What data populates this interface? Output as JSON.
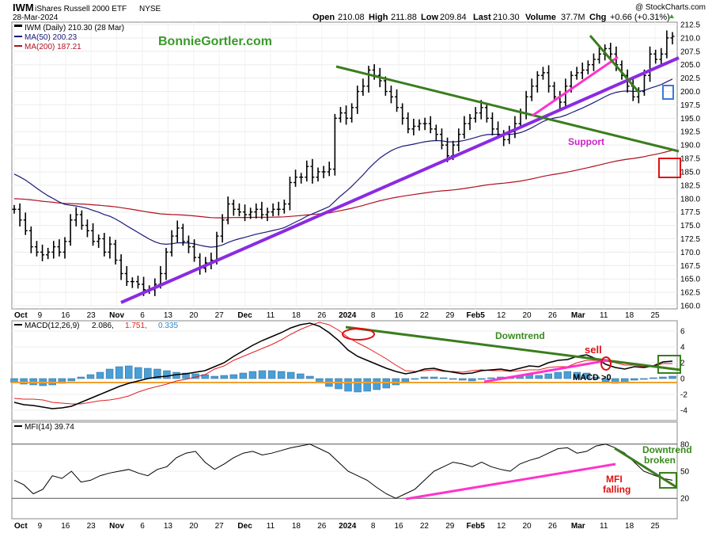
{
  "header": {
    "symbol": "IWM",
    "name": "iShares Russell 2000 ETF",
    "exchange": "NYSE",
    "date": "28-Mar-2024",
    "open_label": "Open",
    "open": "210.08",
    "high_label": "High",
    "high": "211.88",
    "low_label": "Low",
    "low": "209.84",
    "last_label": "Last",
    "last": "210.30",
    "volume_label": "Volume",
    "volume": "37.7M",
    "chg_label": "Chg",
    "chg": "+0.66 (+0.31%)",
    "source": "@ StockCharts.com"
  },
  "watermark": "BonnieGortler.com",
  "price_legend": {
    "main": "IWM (Daily) 210.30 (28 Mar)",
    "ma50": "MA(50) 200.23",
    "ma200": "MA(200) 187.21"
  },
  "macd_legend": {
    "label": "MACD(12,26,9)",
    "v1": "2.086,",
    "v2": "1.751,",
    "v3": "0.335"
  },
  "mfi_legend": {
    "label": "MFI(14) 39.74"
  },
  "annotations": {
    "support": "Support",
    "downtrend": "Downtrend",
    "sell": "sell",
    "macd_gt_0": "MACD >0",
    "downtrend_broken_1": "Downtrend",
    "downtrend_broken_2": "broken",
    "mfi_falling_1": "MFI",
    "mfi_falling_2": "falling"
  },
  "colors": {
    "price_bar": "#000000",
    "ma50": "#1a1a7a",
    "ma200": "#b01020",
    "trend_purple": "#8a2be2",
    "trend_green": "#3a7d1e",
    "magenta": "#ff33cc",
    "macd_line": "#000000",
    "signal_line": "#e02020",
    "histogram": "#4a9fd6",
    "zero_line": "#f0a030",
    "annot_red": "#e01010",
    "annot_blue": "#3b7ad8"
  },
  "chart_data": [
    {
      "type": "ohlc",
      "panel": "price",
      "title": "IWM iShares Russell 2000 ETF NYSE",
      "ylim": [
        160,
        212.5
      ],
      "y_ticks": [
        "212.5",
        "210.0",
        "207.5",
        "205.0",
        "202.5",
        "200.0",
        "197.5",
        "195.0",
        "192.5",
        "190.0",
        "187.5",
        "185.0",
        "182.5",
        "180.0",
        "177.5",
        "175.0",
        "172.5",
        "170.0",
        "167.5",
        "165.0",
        "162.5",
        "160.0"
      ],
      "x_labels": [
        "Oct",
        "9",
        "16",
        "23",
        "Nov",
        "6",
        "13",
        "20",
        "27",
        "Dec",
        "11",
        "18",
        "26",
        "2024",
        "8",
        "16",
        "22",
        "29",
        "Feb5",
        "12",
        "20",
        "26",
        "Mar",
        "11",
        "18",
        "25"
      ],
      "series": [
        {
          "name": "IWM (Daily)",
          "last": 210.3
        },
        {
          "name": "MA(50)",
          "last": 200.23
        },
        {
          "name": "MA(200)",
          "last": 187.21
        }
      ],
      "close_path": [
        178,
        176,
        174,
        171,
        170,
        169.5,
        170,
        171,
        170,
        172,
        176,
        177,
        175,
        174,
        172,
        172.5,
        170,
        171.5,
        168.5,
        166,
        164.5,
        164.5,
        164,
        163,
        163,
        164,
        166,
        170,
        173,
        174.5,
        172,
        171,
        169,
        167,
        168,
        168.5,
        173,
        176,
        179,
        178,
        177.5,
        177,
        177.5,
        178,
        177,
        177.5,
        178,
        178,
        179,
        183,
        184,
        184,
        186,
        184,
        185,
        185,
        185.5,
        195,
        196,
        195,
        197,
        200,
        201,
        204,
        203,
        202,
        200,
        199,
        197,
        195,
        193,
        193.5,
        194,
        194,
        193,
        192,
        190,
        188,
        190,
        192,
        194,
        195,
        196,
        197,
        195,
        193,
        192,
        191,
        192.5,
        194,
        196,
        199,
        201,
        203,
        203.5,
        201,
        199,
        198,
        201,
        203,
        203.5,
        204,
        205,
        206,
        207,
        208,
        207,
        205,
        203,
        201,
        199,
        200,
        203,
        207,
        206,
        207,
        210,
        210.3
      ]
    },
    {
      "type": "line",
      "panel": "macd",
      "title": "MACD(12,26,9)",
      "ylim": [
        -5,
        7
      ],
      "y_ticks": [
        "6",
        "4",
        "2",
        "0",
        "-2",
        "-4"
      ],
      "series": [
        {
          "name": "MACD(12,26,9)",
          "last": 2.086
        },
        {
          "name": "Signal",
          "last": 1.751
        },
        {
          "name": "Histogram",
          "last": 0.335
        }
      ],
      "macd": [
        -3,
        -3.3,
        -3.4,
        -3.6,
        -3.8,
        -3.7,
        -3.5,
        -3,
        -2.5,
        -2,
        -1.5,
        -1,
        -0.6,
        -0.3,
        0,
        0.2,
        0.3,
        0.5,
        0.6,
        0.8,
        1,
        1.5,
        2,
        2.8,
        3.5,
        4.2,
        4.8,
        5.3,
        5.8,
        6.4,
        6.8,
        7,
        6.6,
        5.8,
        4.8,
        3.6,
        2.8,
        2.3,
        1.8,
        1.3,
        0.9,
        0.6,
        0.8,
        1.2,
        1.3,
        1.0,
        0.8,
        0.6,
        0.7,
        1.0,
        1.1,
        1.2,
        1.0,
        1.3,
        1.6,
        1.5,
        2.0,
        2.3,
        2.4,
        2.8,
        3.0,
        2.5,
        1.8,
        1.4,
        1.2,
        1.5,
        1.4,
        1.6,
        2.1,
        2.2
      ],
      "histogram": [
        -0.5,
        -0.7,
        -0.8,
        -0.9,
        -0.8,
        -0.6,
        -0.3,
        0.2,
        0.5,
        0.8,
        1.2,
        1.5,
        1.6,
        1.4,
        1.3,
        1.2,
        1.0,
        0.8,
        0.7,
        0.6,
        0.5,
        0.3,
        0.4,
        0.5,
        0.7,
        0.9,
        1.0,
        1.0,
        0.9,
        0.8,
        0.6,
        0.3,
        -0.5,
        -1.0,
        -1.3,
        -1.6,
        -1.7,
        -1.6,
        -1.4,
        -1.2,
        -0.8,
        -0.4,
        -0.1,
        0.2,
        0.2,
        0.1,
        -0.1,
        -0.2,
        -0.3,
        -0.1,
        0.1,
        0.2,
        0.1,
        0.3,
        0.5,
        0.4,
        0.6,
        0.8,
        0.9,
        0.8,
        0.7,
        0.2,
        -0.4,
        -0.6,
        -0.5,
        -0.2,
        -0.1,
        0.1,
        0.2,
        0.3
      ]
    },
    {
      "type": "line",
      "panel": "mfi",
      "title": "MFI(14)",
      "ylim": [
        0,
        100
      ],
      "y_ticks": [
        "80",
        "50",
        "20"
      ],
      "series": [
        {
          "name": "MFI(14)",
          "last": 39.74
        }
      ],
      "values": [
        40,
        35,
        25,
        30,
        45,
        42,
        50,
        38,
        40,
        45,
        48,
        50,
        52,
        48,
        45,
        52,
        55,
        65,
        70,
        72,
        60,
        52,
        58,
        65,
        70,
        72,
        68,
        70,
        73,
        76,
        78,
        80,
        75,
        70,
        60,
        50,
        45,
        40,
        32,
        25,
        20,
        25,
        30,
        40,
        50,
        55,
        60,
        58,
        55,
        60,
        55,
        52,
        50,
        58,
        62,
        65,
        70,
        75,
        76,
        70,
        72,
        78,
        80,
        76,
        70,
        60,
        50,
        46,
        42,
        40
      ]
    }
  ]
}
